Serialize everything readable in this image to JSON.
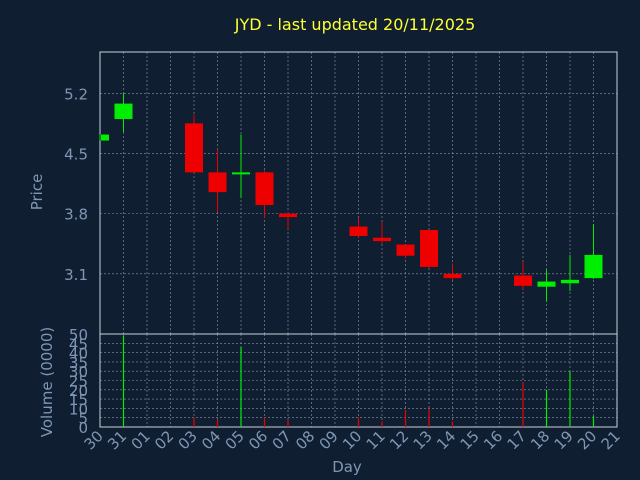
{
  "chart_data": {
    "type": "candlestick",
    "title": "JYD - last updated 20/11/2025",
    "xlabel": "Day",
    "ylabel": "Price",
    "volume_label": "Volume (0000)",
    "categories": [
      "30",
      "31",
      "01",
      "02",
      "03",
      "04",
      "05",
      "06",
      "07",
      "08",
      "09",
      "10",
      "11",
      "12",
      "13",
      "14",
      "15",
      "16",
      "17",
      "18",
      "19",
      "20",
      "21"
    ],
    "price_ticks": [
      "5.2",
      "4.5",
      "3.8",
      "3.1"
    ],
    "price_tick_values": [
      5.2,
      4.5,
      3.8,
      3.1
    ],
    "ylim": [
      2.4,
      5.68
    ],
    "volume_ticks": [
      "0",
      "5",
      "10",
      "15",
      "20",
      "25",
      "30",
      "35",
      "40",
      "45",
      "50"
    ],
    "volume_ylim": [
      0,
      50
    ],
    "candles": [
      {
        "day": "30",
        "open": 4.65,
        "high": 4.72,
        "low": 4.65,
        "close": 4.72
      },
      {
        "day": "31",
        "open": 4.9,
        "high": 5.2,
        "low": 4.75,
        "close": 5.08
      },
      {
        "day": "03",
        "open": 4.85,
        "high": 4.95,
        "low": 4.28,
        "close": 4.28
      },
      {
        "day": "04",
        "open": 4.28,
        "high": 4.55,
        "low": 3.82,
        "close": 4.05
      },
      {
        "day": "05",
        "open": 4.27,
        "high": 4.72,
        "low": 3.98,
        "close": 4.28
      },
      {
        "day": "06",
        "open": 4.28,
        "high": 4.3,
        "low": 3.75,
        "close": 3.9
      },
      {
        "day": "07",
        "open": 3.8,
        "high": 3.82,
        "low": 3.62,
        "close": 3.76
      },
      {
        "day": "10",
        "open": 3.65,
        "high": 3.75,
        "low": 3.52,
        "close": 3.54
      },
      {
        "day": "11",
        "open": 3.52,
        "high": 3.7,
        "low": 3.45,
        "close": 3.48
      },
      {
        "day": "12",
        "open": 3.44,
        "high": 3.44,
        "low": 3.28,
        "close": 3.31
      },
      {
        "day": "13",
        "open": 3.61,
        "high": 3.61,
        "low": 3.17,
        "close": 3.18
      },
      {
        "day": "14",
        "open": 3.1,
        "high": 3.22,
        "low": 3.03,
        "close": 3.05
      },
      {
        "day": "17",
        "open": 3.08,
        "high": 3.24,
        "low": 2.92,
        "close": 2.96
      },
      {
        "day": "18",
        "open": 2.95,
        "high": 3.15,
        "low": 2.78,
        "close": 3.01
      },
      {
        "day": "19",
        "open": 2.99,
        "high": 3.32,
        "low": 2.9,
        "close": 3.03
      },
      {
        "day": "20",
        "open": 3.05,
        "high": 3.68,
        "low": 3.04,
        "close": 3.32
      }
    ],
    "volumes": [
      {
        "day": "31",
        "value": 49
      },
      {
        "day": "03",
        "value": 5
      },
      {
        "day": "04",
        "value": 4
      },
      {
        "day": "05",
        "value": 43
      },
      {
        "day": "06",
        "value": 5
      },
      {
        "day": "07",
        "value": 4
      },
      {
        "day": "10",
        "value": 5
      },
      {
        "day": "11",
        "value": 3
      },
      {
        "day": "12",
        "value": 9
      },
      {
        "day": "13",
        "value": 10
      },
      {
        "day": "14",
        "value": 3
      },
      {
        "day": "17",
        "value": 24
      },
      {
        "day": "18",
        "value": 20
      },
      {
        "day": "19",
        "value": 30
      },
      {
        "day": "20",
        "value": 6
      }
    ],
    "grid": true,
    "colors": {
      "background": "#0f1e31",
      "up": "#00ee00",
      "down": "#ee0000",
      "grid": "#8a96a6",
      "frame": "#c9d2dc",
      "text": "#7f97b5",
      "title": "#ffff33"
    }
  }
}
